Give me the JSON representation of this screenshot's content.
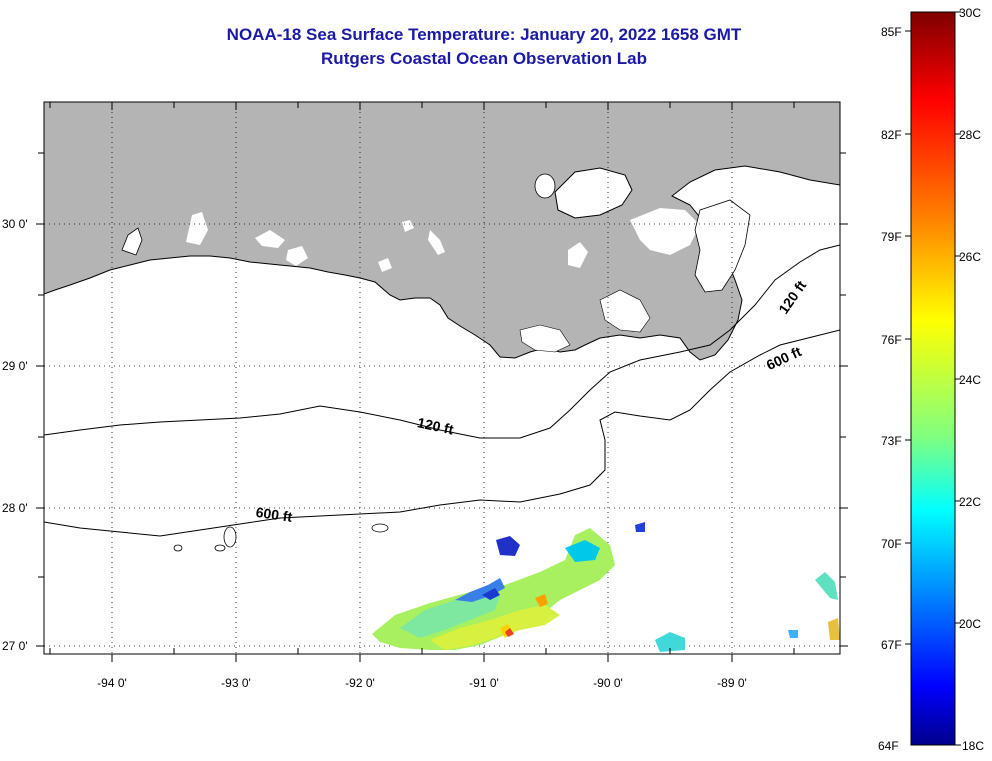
{
  "title_line1": "NOAA-18 Sea Surface Temperature:  January 20, 2022 1658 GMT",
  "title_line2": "Rutgers Coastal Ocean Observation Lab",
  "map": {
    "land_color": "#b4b4b4",
    "no_data_color": "#ffffff",
    "lon_labels": [
      "-94 0'",
      "-93 0'",
      "-92 0'",
      "-91 0'",
      "-90 0'",
      "-89 0'"
    ],
    "lat_labels": [
      "30 0'",
      "29 0'",
      "28 0'",
      "27 0'"
    ],
    "contour_labels": [
      "120 ft",
      "600 ft",
      "120 ft",
      "600 ft"
    ]
  },
  "colorbar": {
    "fahrenheit_labels": [
      "85F",
      "82F",
      "79F",
      "76F",
      "73F",
      "70F",
      "67F",
      "64F"
    ],
    "celsius_labels": [
      "30C",
      "28C",
      "26C",
      "24C",
      "22C",
      "20C",
      "18C"
    ],
    "colors": [
      "#7f0000",
      "#ff0000",
      "#ff8000",
      "#ffff00",
      "#80ff80",
      "#00ffff",
      "#0080ff",
      "#0000ff",
      "#00008b"
    ]
  }
}
